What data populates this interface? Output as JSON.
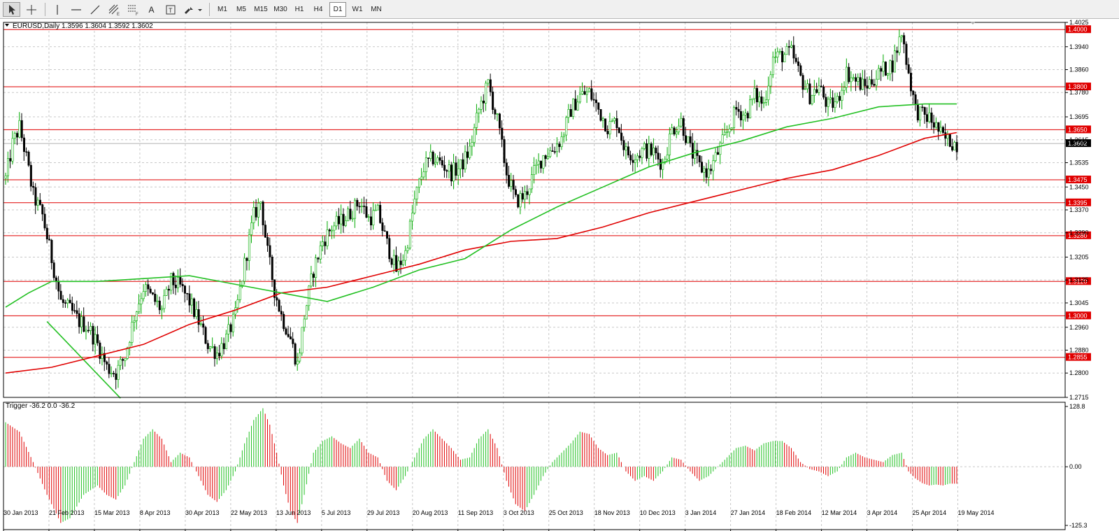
{
  "toolbar": {
    "tools": [
      {
        "name": "cursor-tool-button",
        "icon": "arrow-cursor-icon",
        "active": true
      },
      {
        "name": "crosshair-tool-button",
        "icon": "crosshair-icon"
      },
      {
        "name": "vertical-line-button",
        "icon": "vertical-line-icon"
      },
      {
        "name": "horizontal-line-button",
        "icon": "horizontal-line-icon"
      },
      {
        "name": "trendline-button",
        "icon": "trendline-icon"
      },
      {
        "name": "equidistant-channel-button",
        "icon": "channel-icon"
      },
      {
        "name": "fibonacci-button",
        "icon": "fibonacci-icon"
      },
      {
        "name": "text-button",
        "icon": "text-icon"
      },
      {
        "name": "text-label-button",
        "icon": "text-label-icon"
      },
      {
        "name": "arrows-button",
        "icon": "arrows-icon"
      }
    ],
    "text_label": "A",
    "label_tool_label": "T",
    "timeframes": [
      "M1",
      "M5",
      "M15",
      "M30",
      "H1",
      "H4",
      "D1",
      "W1",
      "MN"
    ],
    "active_timeframe": "D1"
  },
  "chart_data": {
    "type": "candlestick",
    "symbol_header": "EURUSD,Daily  1.3596 1.3604 1.3592 1.3602",
    "y_ticks": [
      "1.4025",
      "1.3940",
      "1.3860",
      "1.3780",
      "1.3695",
      "1.3615",
      "1.3535",
      "1.3450",
      "1.3370",
      "1.3290",
      "1.3205",
      "1.3125",
      "1.3045",
      "1.2960",
      "1.2880",
      "1.2800",
      "1.2715"
    ],
    "y_range": [
      1.2715,
      1.4025
    ],
    "x_labels": [
      "30 Jan 2013",
      "21 Feb 2013",
      "15 Mar 2013",
      "8 Apr 2013",
      "30 Apr 2013",
      "22 May 2013",
      "13 Jun 2013",
      "5 Jul 2013",
      "29 Jul 2013",
      "20 Aug 2013",
      "11 Sep 2013",
      "3 Oct 2013",
      "25 Oct 2013",
      "18 Nov 2013",
      "10 Dec 2013",
      "3 Jan 2014",
      "27 Jan 2014",
      "18 Feb 2014",
      "12 Mar 2014",
      "3 Apr 2014",
      "25 Apr 2014",
      "19 May 2014"
    ],
    "current_price": "1.3602",
    "horizontal_levels": [
      {
        "value": 1.4,
        "label": "1.4000"
      },
      {
        "value": 1.38,
        "label": "1.3800"
      },
      {
        "value": 1.365,
        "label": "1.3650"
      },
      {
        "value": 1.3475,
        "label": "1.3475"
      },
      {
        "value": 1.3395,
        "label": "1.3395"
      },
      {
        "value": 1.328,
        "label": "1.3280"
      },
      {
        "value": 1.312,
        "label": "1.3120"
      },
      {
        "value": 1.3,
        "label": "1.3000"
      },
      {
        "value": 1.2855,
        "label": "1.2855"
      }
    ],
    "price_path": [
      [
        0,
        1.348
      ],
      [
        3,
        1.36
      ],
      [
        6,
        1.366
      ],
      [
        9,
        1.355
      ],
      [
        12,
        1.342
      ],
      [
        16,
        1.335
      ],
      [
        20,
        1.32
      ],
      [
        24,
        1.305
      ],
      [
        28,
        1.302
      ],
      [
        32,
        1.298
      ],
      [
        36,
        1.296
      ],
      [
        40,
        1.29
      ],
      [
        44,
        1.282
      ],
      [
        48,
        1.28
      ],
      [
        52,
        1.286
      ],
      [
        56,
        1.3
      ],
      [
        60,
        1.31
      ],
      [
        64,
        1.306
      ],
      [
        68,
        1.302
      ],
      [
        72,
        1.312
      ],
      [
        76,
        1.31
      ],
      [
        80,
        1.305
      ],
      [
        84,
        1.298
      ],
      [
        88,
        1.29
      ],
      [
        92,
        1.287
      ],
      [
        96,
        1.292
      ],
      [
        100,
        1.3
      ],
      [
        104,
        1.318
      ],
      [
        108,
        1.335
      ],
      [
        111,
        1.34
      ],
      [
        114,
        1.322
      ],
      [
        117,
        1.309
      ],
      [
        120,
        1.3
      ],
      [
        124,
        1.292
      ],
      [
        127,
        1.283
      ],
      [
        130,
        1.3
      ],
      [
        134,
        1.316
      ],
      [
        138,
        1.326
      ],
      [
        142,
        1.331
      ],
      [
        146,
        1.333
      ],
      [
        150,
        1.336
      ],
      [
        154,
        1.34
      ],
      [
        158,
        1.334
      ],
      [
        162,
        1.336
      ],
      [
        166,
        1.325
      ],
      [
        170,
        1.316
      ],
      [
        174,
        1.322
      ],
      [
        178,
        1.34
      ],
      [
        182,
        1.352
      ],
      [
        186,
        1.355
      ],
      [
        190,
        1.353
      ],
      [
        194,
        1.35
      ],
      [
        198,
        1.352
      ],
      [
        202,
        1.358
      ],
      [
        206,
        1.372
      ],
      [
        210,
        1.381
      ],
      [
        214,
        1.368
      ],
      [
        218,
        1.35
      ],
      [
        222,
        1.34
      ],
      [
        226,
        1.342
      ],
      [
        230,
        1.35
      ],
      [
        234,
        1.356
      ],
      [
        238,
        1.358
      ],
      [
        242,
        1.362
      ],
      [
        246,
        1.372
      ],
      [
        250,
        1.377
      ],
      [
        254,
        1.378
      ],
      [
        258,
        1.372
      ],
      [
        262,
        1.366
      ],
      [
        266,
        1.368
      ],
      [
        270,
        1.357
      ],
      [
        274,
        1.356
      ],
      [
        278,
        1.358
      ],
      [
        282,
        1.357
      ],
      [
        286,
        1.353
      ],
      [
        290,
        1.365
      ],
      [
        294,
        1.368
      ],
      [
        298,
        1.358
      ],
      [
        302,
        1.352
      ],
      [
        306,
        1.35
      ],
      [
        310,
        1.357
      ],
      [
        314,
        1.364
      ],
      [
        318,
        1.372
      ],
      [
        322,
        1.37
      ],
      [
        326,
        1.377
      ],
      [
        330,
        1.374
      ],
      [
        334,
        1.39
      ],
      [
        338,
        1.391
      ],
      [
        342,
        1.392
      ],
      [
        346,
        1.383
      ],
      [
        350,
        1.377
      ],
      [
        354,
        1.38
      ],
      [
        358,
        1.373
      ],
      [
        362,
        1.375
      ],
      [
        366,
        1.385
      ],
      [
        370,
        1.382
      ],
      [
        374,
        1.38
      ],
      [
        378,
        1.383
      ],
      [
        382,
        1.386
      ],
      [
        386,
        1.388
      ],
      [
        390,
        1.399
      ],
      [
        393,
        1.385
      ],
      [
        396,
        1.372
      ],
      [
        399,
        1.37
      ],
      [
        402,
        1.369
      ],
      [
        405,
        1.366
      ],
      [
        408,
        1.362
      ],
      [
        411,
        1.361
      ],
      [
        414,
        1.36
      ]
    ],
    "ma_red": [
      [
        0,
        1.28
      ],
      [
        20,
        1.282
      ],
      [
        40,
        1.286
      ],
      [
        60,
        1.29
      ],
      [
        80,
        1.297
      ],
      [
        100,
        1.302
      ],
      [
        120,
        1.308
      ],
      [
        140,
        1.31
      ],
      [
        160,
        1.314
      ],
      [
        180,
        1.318
      ],
      [
        200,
        1.323
      ],
      [
        220,
        1.326
      ],
      [
        240,
        1.327
      ],
      [
        260,
        1.331
      ],
      [
        280,
        1.336
      ],
      [
        300,
        1.34
      ],
      [
        320,
        1.344
      ],
      [
        340,
        1.348
      ],
      [
        360,
        1.351
      ],
      [
        380,
        1.356
      ],
      [
        400,
        1.362
      ],
      [
        414,
        1.364
      ]
    ],
    "ma_green": [
      [
        0,
        1.303
      ],
      [
        10,
        1.308
      ],
      [
        20,
        1.312
      ],
      [
        40,
        1.312
      ],
      [
        60,
        1.313
      ],
      [
        80,
        1.314
      ],
      [
        100,
        1.311
      ],
      [
        120,
        1.308
      ],
      [
        140,
        1.305
      ],
      [
        160,
        1.31
      ],
      [
        180,
        1.316
      ],
      [
        200,
        1.32
      ],
      [
        220,
        1.33
      ],
      [
        240,
        1.338
      ],
      [
        260,
        1.345
      ],
      [
        280,
        1.352
      ],
      [
        300,
        1.357
      ],
      [
        320,
        1.361
      ],
      [
        340,
        1.366
      ],
      [
        360,
        1.369
      ],
      [
        380,
        1.373
      ],
      [
        400,
        1.374
      ],
      [
        414,
        1.374
      ]
    ],
    "trendline": [
      [
        18,
        1.298
      ],
      [
        50,
        1.2712
      ]
    ],
    "indicator": {
      "header": "Trigger -36.2 0.0 -36.2",
      "y_ticks": [
        "128.8",
        "0.00",
        "-125.3"
      ],
      "y_range": [
        -125.3,
        128.8
      ],
      "path": [
        [
          0,
          95
        ],
        [
          6,
          75
        ],
        [
          12,
          10
        ],
        [
          18,
          -60
        ],
        [
          24,
          -120
        ],
        [
          28,
          -110
        ],
        [
          34,
          -60
        ],
        [
          40,
          -40
        ],
        [
          44,
          -60
        ],
        [
          48,
          -70
        ],
        [
          52,
          -40
        ],
        [
          56,
          10
        ],
        [
          60,
          60
        ],
        [
          64,
          80
        ],
        [
          68,
          60
        ],
        [
          72,
          10
        ],
        [
          76,
          30
        ],
        [
          80,
          20
        ],
        [
          84,
          -20
        ],
        [
          88,
          -60
        ],
        [
          92,
          -75
        ],
        [
          96,
          -50
        ],
        [
          100,
          -10
        ],
        [
          104,
          50
        ],
        [
          108,
          100
        ],
        [
          112,
          125
        ],
        [
          115,
          90
        ],
        [
          118,
          30
        ],
        [
          121,
          -40
        ],
        [
          124,
          -95
        ],
        [
          127,
          -120
        ],
        [
          130,
          -60
        ],
        [
          134,
          30
        ],
        [
          138,
          55
        ],
        [
          142,
          65
        ],
        [
          146,
          50
        ],
        [
          150,
          40
        ],
        [
          154,
          60
        ],
        [
          158,
          30
        ],
        [
          162,
          20
        ],
        [
          166,
          -30
        ],
        [
          170,
          -50
        ],
        [
          174,
          -20
        ],
        [
          178,
          20
        ],
        [
          182,
          60
        ],
        [
          186,
          80
        ],
        [
          190,
          60
        ],
        [
          194,
          40
        ],
        [
          198,
          15
        ],
        [
          202,
          20
        ],
        [
          206,
          60
        ],
        [
          210,
          80
        ],
        [
          214,
          40
        ],
        [
          218,
          -30
        ],
        [
          222,
          -80
        ],
        [
          226,
          -95
        ],
        [
          230,
          -60
        ],
        [
          234,
          -20
        ],
        [
          238,
          10
        ],
        [
          242,
          30
        ],
        [
          246,
          50
        ],
        [
          250,
          75
        ],
        [
          254,
          70
        ],
        [
          258,
          40
        ],
        [
          262,
          25
        ],
        [
          266,
          30
        ],
        [
          270,
          -10
        ],
        [
          274,
          -30
        ],
        [
          278,
          -20
        ],
        [
          282,
          -30
        ],
        [
          286,
          -10
        ],
        [
          290,
          20
        ],
        [
          294,
          15
        ],
        [
          298,
          -10
        ],
        [
          302,
          -30
        ],
        [
          306,
          -20
        ],
        [
          310,
          0
        ],
        [
          314,
          20
        ],
        [
          318,
          40
        ],
        [
          322,
          45
        ],
        [
          326,
          35
        ],
        [
          330,
          50
        ],
        [
          334,
          55
        ],
        [
          338,
          55
        ],
        [
          342,
          40
        ],
        [
          346,
          10
        ],
        [
          350,
          -5
        ],
        [
          354,
          -10
        ],
        [
          358,
          -20
        ],
        [
          362,
          -10
        ],
        [
          366,
          20
        ],
        [
          370,
          30
        ],
        [
          374,
          20
        ],
        [
          378,
          15
        ],
        [
          382,
          10
        ],
        [
          386,
          25
        ],
        [
          390,
          30
        ],
        [
          393,
          -10
        ],
        [
          396,
          -25
        ],
        [
          399,
          -35
        ],
        [
          402,
          -40
        ],
        [
          405,
          -38
        ],
        [
          408,
          -40
        ],
        [
          411,
          -36
        ],
        [
          414,
          -36.2
        ]
      ]
    }
  },
  "colors": {
    "bull": "#00aa00",
    "bear": "#000000",
    "ma_red": "#e00000",
    "ma_green": "#22c022",
    "level_line": "#e00000",
    "level_label_bg": "#e00000",
    "current_bg": "#000000",
    "grid": "#c8c8c8",
    "hist_up": "#22c022",
    "hist_down": "#e00000"
  }
}
